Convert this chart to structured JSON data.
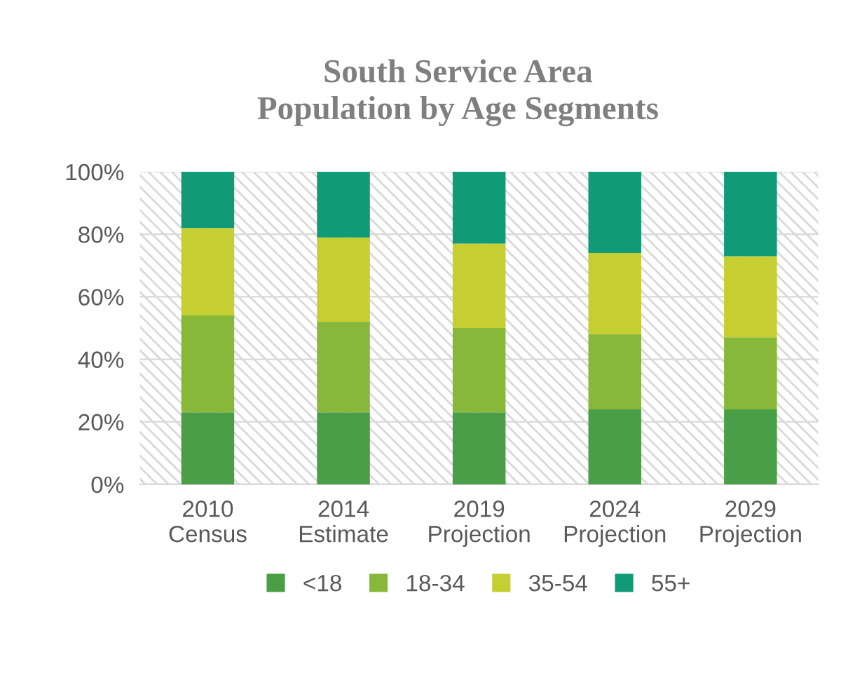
{
  "chart_data": {
    "type": "bar",
    "title": "South Service Area\nPopulation by Age Segments",
    "categories": [
      "2010\nCensus",
      "2014\nEstimate",
      "2019\nProjection",
      "2024\nProjection",
      "2029\nProjection"
    ],
    "stacked": true,
    "series": [
      {
        "name": "<18",
        "color": "#4a9e45",
        "values": [
          23,
          23,
          23,
          24,
          24
        ]
      },
      {
        "name": "18-34",
        "color": "#88b83a",
        "values": [
          31,
          29,
          27,
          24,
          23
        ]
      },
      {
        "name": "35-54",
        "color": "#c6cf32",
        "values": [
          28,
          27,
          27,
          26,
          26
        ]
      },
      {
        "name": "55+",
        "color": "#119a78",
        "values": [
          18,
          21,
          23,
          26,
          27
        ]
      }
    ],
    "ylim": [
      0,
      100
    ],
    "yticks": [
      {
        "value": 0,
        "label": "0%"
      },
      {
        "value": 20,
        "label": "20%"
      },
      {
        "value": 40,
        "label": "40%"
      },
      {
        "value": 60,
        "label": "60%"
      },
      {
        "value": 80,
        "label": "80%"
      },
      {
        "value": 100,
        "label": "100%"
      }
    ],
    "grid": "y",
    "legend": "bottom"
  }
}
